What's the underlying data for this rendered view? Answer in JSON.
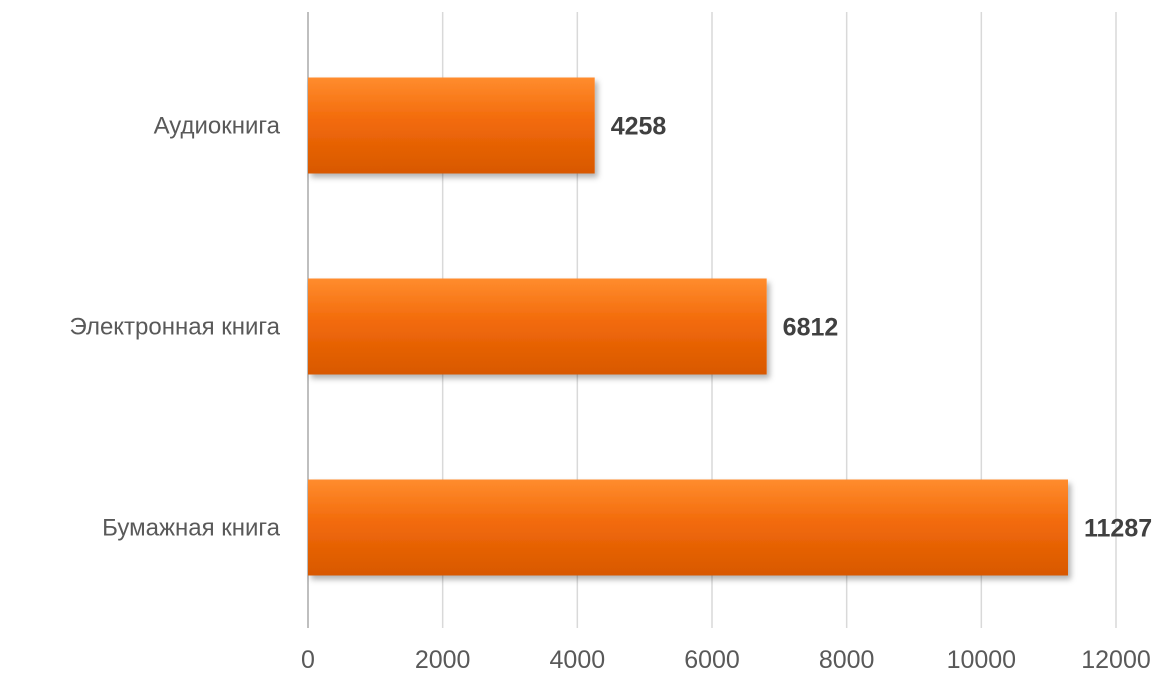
{
  "chart_data": {
    "type": "bar",
    "orientation": "horizontal",
    "categories": [
      "Аудиокнига",
      "Электронная книга",
      "Бумажная книга"
    ],
    "values": [
      4258,
      6812,
      11287
    ],
    "data_labels": [
      "4258",
      "6812",
      "11287"
    ],
    "xlim": [
      0,
      12000
    ],
    "x_ticks": [
      0,
      2000,
      4000,
      6000,
      8000,
      10000,
      12000
    ],
    "x_tick_labels": [
      "0",
      "2000",
      "4000",
      "6000",
      "8000",
      "10000",
      "12000"
    ],
    "title": "",
    "xlabel": "",
    "ylabel": "",
    "grid": "vertical",
    "legend": "none",
    "colors": {
      "bar_light": "#ff8c2e",
      "bar": "#f26a0a",
      "bar_dark": "#d85800",
      "grid": "#d9d9d9",
      "text": "#595959",
      "data_label": "#404040"
    }
  }
}
